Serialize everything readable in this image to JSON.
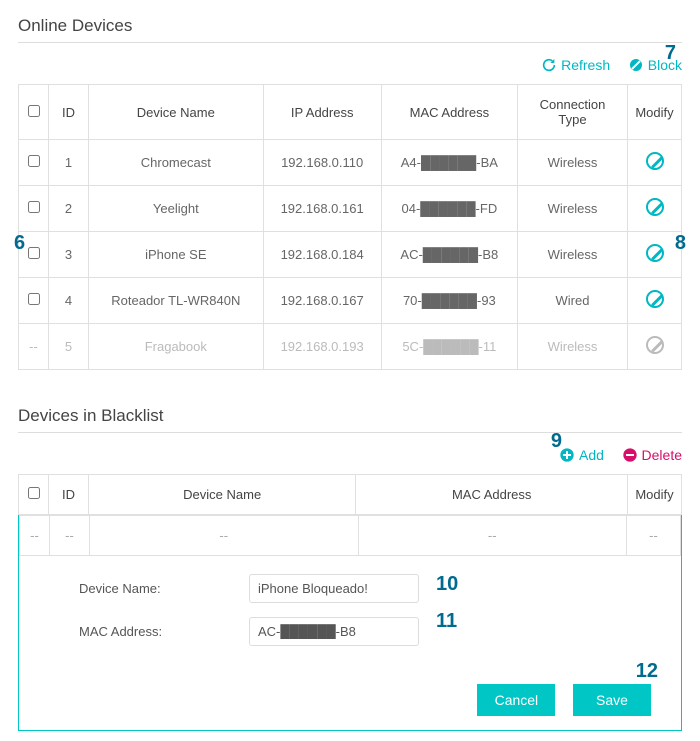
{
  "colors": {
    "accent": "#00b7c3",
    "danger": "#d80e6a",
    "annotation": "#006b8f",
    "border": "#e0e0e0",
    "muted": "#bbbbbb"
  },
  "online": {
    "title": "Online Devices",
    "refresh_label": "Refresh",
    "block_label": "Block",
    "cols": {
      "id": "ID",
      "device": "Device Name",
      "ip": "IP Address",
      "mac": "MAC Address",
      "conn": "Connection Type",
      "modify": "Modify"
    },
    "rows": [
      {
        "id": "1",
        "device": "Chromecast",
        "ip": "192.168.0.110",
        "mac": "A4-██████-BA",
        "conn": "Wireless",
        "dim": false
      },
      {
        "id": "2",
        "device": "Yeelight",
        "ip": "192.168.0.161",
        "mac": "04-██████-FD",
        "conn": "Wireless",
        "dim": false
      },
      {
        "id": "3",
        "device": "iPhone SE",
        "ip": "192.168.0.184",
        "mac": "AC-██████-B8",
        "conn": "Wireless",
        "dim": false
      },
      {
        "id": "4",
        "device": "Roteador TL-WR840N",
        "ip": "192.168.0.167",
        "mac": "70-██████-93",
        "conn": "Wired",
        "dim": false
      },
      {
        "id": "5",
        "device": "Fragabook",
        "ip": "192.168.0.193",
        "mac": "5C-██████-11",
        "conn": "Wireless",
        "dim": true
      }
    ]
  },
  "blacklist": {
    "title": "Devices in Blacklist",
    "add_label": "Add",
    "delete_label": "Delete",
    "cols": {
      "id": "ID",
      "device": "Device Name",
      "mac": "MAC Address",
      "modify": "Modify"
    },
    "placeholder": "--",
    "form": {
      "device_label": "Device Name:",
      "device_value": "iPhone Bloqueado!",
      "mac_label": "MAC Address:",
      "mac_value": "AC-██████-B8",
      "cancel_label": "Cancel",
      "save_label": "Save"
    }
  },
  "annotations": {
    "a6": "6",
    "a7": "7",
    "a8": "8",
    "a9": "9",
    "a10": "10",
    "a11": "11",
    "a12": "12"
  }
}
